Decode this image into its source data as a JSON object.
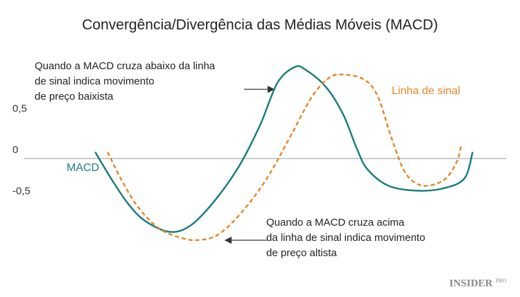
{
  "chart_data": {
    "type": "line",
    "title": "Convergência/Divergência das Médias Móveis (MACD)",
    "xlim": [
      0,
      100
    ],
    "ylim": [
      -1.5,
      1.5
    ],
    "yticks": [
      {
        "value": 0.5,
        "label": "0,5"
      },
      0,
      {
        "value": -0.5,
        "label": "-0,5"
      }
    ],
    "zero_line": true,
    "series": [
      {
        "name": "MACD",
        "color": "#1b7d7e",
        "dashed": false,
        "x": [
          14.1,
          17.4,
          21,
          24.6,
          29.7,
          34.1,
          39.1,
          44.2,
          48.6,
          52.2,
          55.8,
          58,
          62.3,
          65.9,
          68.8,
          71,
          75.4,
          81.2,
          87,
          91.3,
          93
        ],
        "values": [
          0.08,
          -0.24,
          -0.55,
          -0.76,
          -0.89,
          -0.81,
          -0.51,
          -0.09,
          0.41,
          0.92,
          1.11,
          1.08,
          0.87,
          0.54,
          0.12,
          -0.13,
          -0.33,
          -0.39,
          -0.36,
          -0.24,
          0.08
        ]
      },
      {
        "name": "Linha de sinal",
        "color": "#e8862a",
        "dashed": true,
        "x": [
          16.7,
          19.6,
          23.2,
          27.5,
          31.9,
          35.5,
          39.9,
          44.9,
          50,
          55.1,
          59.4,
          63,
          65.9,
          70.3,
          73.2,
          76.1,
          79,
          82.6,
          87,
          89.6,
          90.6
        ],
        "values": [
          0.08,
          -0.26,
          -0.6,
          -0.85,
          -0.96,
          -0.99,
          -0.92,
          -0.64,
          -0.24,
          0.29,
          0.75,
          0.98,
          1.02,
          0.96,
          0.75,
          0.24,
          -0.18,
          -0.33,
          -0.26,
          -0.05,
          0.16
        ]
      }
    ],
    "annotations": [
      {
        "lines": [
          "Quando a MACD cruza abaixo da linha",
          "de sinal indica movimento",
          "de preço baixista"
        ]
      },
      {
        "lines": [
          "Quando a MACD cruza acima",
          "da linha de sinal indica movimento",
          "de preço altista"
        ]
      }
    ],
    "logo": {
      "main": "INSIDER",
      "sup": "PRO"
    }
  }
}
